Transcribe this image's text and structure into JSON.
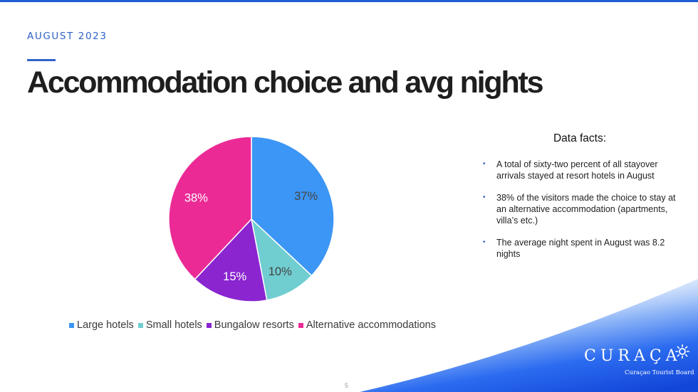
{
  "subtitle": "AUGUST 2023",
  "title": "Accommodation choice and avg nights",
  "chart_data": {
    "type": "pie",
    "categories": [
      "Large hotels",
      "Small hotels",
      "Bungalow resorts",
      "Alternative accommodations"
    ],
    "values": [
      37,
      10,
      15,
      38
    ],
    "labels": [
      "37%",
      "10%",
      "15%",
      "38%"
    ],
    "colors": [
      "#3c96f5",
      "#70cdd0",
      "#8a25d0",
      "#ec2a96"
    ],
    "label_colors": [
      "#444444",
      "#444444",
      "#ffffff",
      "#ffffff"
    ],
    "legend_position": "bottom"
  },
  "facts": {
    "heading": "Data facts:",
    "items": [
      "A total of sixty-two percent of all stayover arrivals stayed at resort hotels in August",
      "38% of the visitors made the choice to stay at an alternative accommodation (apartments, villa’s etc.)",
      "The average night spent in August was 8.2 nights"
    ]
  },
  "page_number": "5",
  "logo": {
    "word": "CURAÇA",
    "sub": "Curaçao Tourist Board"
  },
  "colors": {
    "accent": "#2f63c8",
    "band_dark": "#1a5de8",
    "band_light": "#ffffff"
  }
}
